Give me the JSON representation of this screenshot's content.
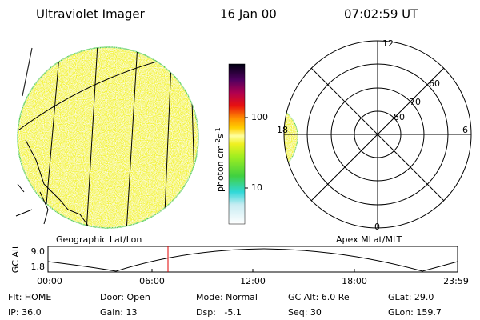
{
  "header": {
    "instrument": "Ultraviolet Imager",
    "date": "16 Jan 00",
    "time": "07:02:59 UT"
  },
  "colorbar": {
    "unit": "photon cm",
    "exp1": "-2",
    "unit2": "s",
    "exp2": "-1",
    "ticks": [
      "100",
      "10"
    ]
  },
  "polar": {
    "mlt_labels": [
      "12",
      "6",
      "0",
      "18"
    ],
    "lat_labels": [
      "60",
      "70",
      "80"
    ]
  },
  "map_label": "Geographic Lat/Lon",
  "polar_label": "Apex MLat/MLT",
  "timeline": {
    "axis_label": "GC Alt",
    "yticks": [
      "9.0",
      "1.8"
    ],
    "xticks": [
      "00:00",
      "06:00",
      "12:00",
      "18:00",
      "23:59"
    ]
  },
  "status": {
    "rows": [
      [
        "Flt: HOME",
        "Door: Open",
        "Mode: Normal",
        "GC Alt: 6.0 Re",
        "GLat: 29.0"
      ],
      [
        "IP: 36.0",
        "Gain: 13",
        "Dsp:   -5.1",
        "Seq: 30",
        "GLon: 159.7"
      ]
    ]
  }
}
